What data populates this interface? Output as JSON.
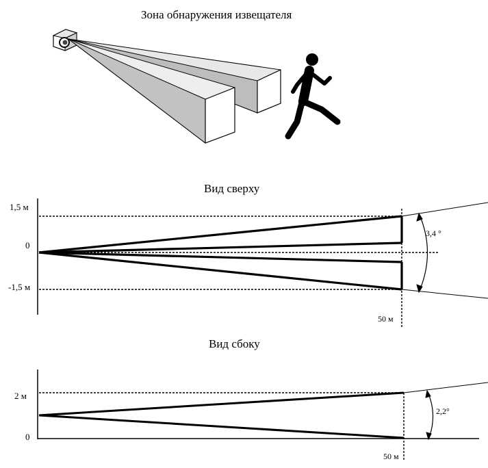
{
  "figure": {
    "title": "Зона обнаружения извещателя"
  },
  "top_view": {
    "title": "Вид сверху",
    "label_pos": "1,5 м",
    "label_zero": "0",
    "label_neg": "-1,5 м",
    "distance": "50 м",
    "angle": "3,4 °"
  },
  "side_view": {
    "title": "Вид сбоку",
    "label_height": "2 м",
    "label_zero": "0",
    "distance": "50 м",
    "angle": "2,2°"
  }
}
